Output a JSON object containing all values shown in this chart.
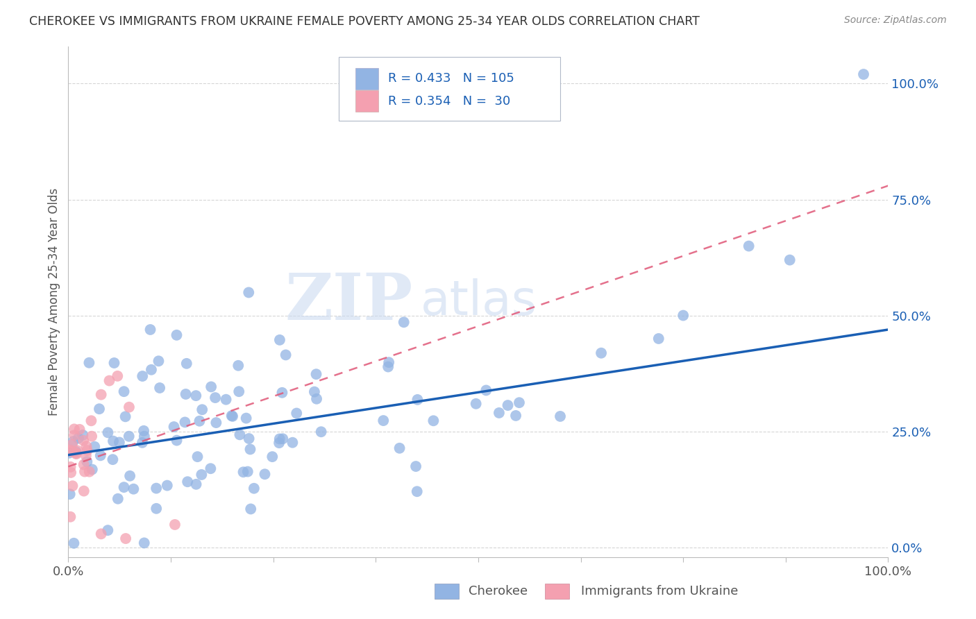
{
  "title": "CHEROKEE VS IMMIGRANTS FROM UKRAINE FEMALE POVERTY AMONG 25-34 YEAR OLDS CORRELATION CHART",
  "source": "Source: ZipAtlas.com",
  "ylabel": "Female Poverty Among 25-34 Year Olds",
  "y_tick_labels": [
    "0.0%",
    "25.0%",
    "50.0%",
    "75.0%",
    "100.0%"
  ],
  "y_tick_values": [
    0.0,
    0.25,
    0.5,
    0.75,
    1.0
  ],
  "x_range": [
    0.0,
    1.0
  ],
  "y_range": [
    -0.02,
    1.08
  ],
  "cherokee_color": "#92b4e3",
  "ukraine_color": "#f4a0b0",
  "cherokee_line_color": "#1a5fb4",
  "ukraine_line_color": "#e05878",
  "R_cherokee": 0.433,
  "N_cherokee": 105,
  "R_ukraine": 0.354,
  "N_ukraine": 30,
  "watermark_zip": "ZIP",
  "watermark_atlas": "atlas",
  "background_color": "#ffffff",
  "grid_color": "#cccccc",
  "legend_label_cherokee": "Cherokee",
  "legend_label_ukraine": "Immigrants from Ukraine",
  "cherokee_line_x0": 0.0,
  "cherokee_line_y0": 0.2,
  "cherokee_line_x1": 1.0,
  "cherokee_line_y1": 0.47,
  "ukraine_line_x0": 0.0,
  "ukraine_line_y0": 0.175,
  "ukraine_line_x1": 1.0,
  "ukraine_line_y1": 0.78,
  "seed": 77
}
